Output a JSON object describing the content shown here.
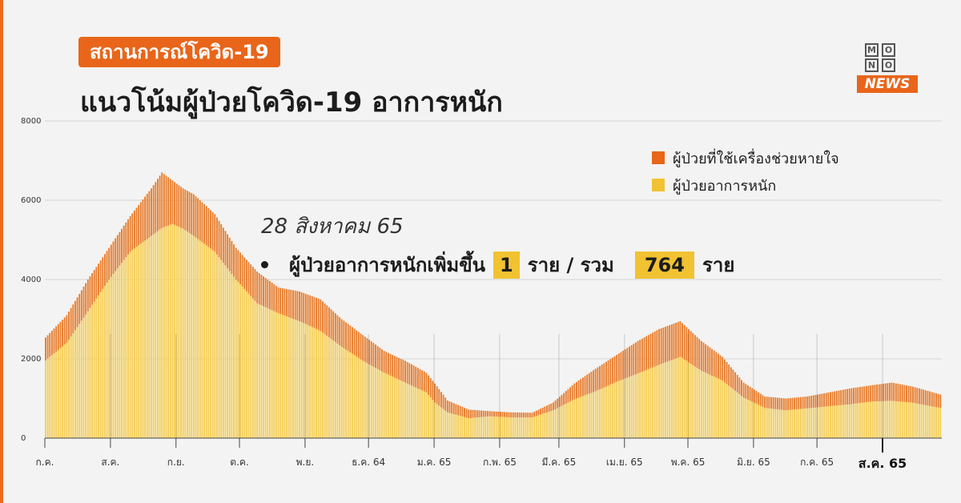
{
  "header": {
    "badge": "สถานการณ์โควิด-19",
    "title": "แนวโน้มผู้ป่วยโควิด-19 อาการหนัก"
  },
  "logo": {
    "top_letters": [
      "M",
      "O",
      "N",
      "O"
    ],
    "bottom_text": "NEWS"
  },
  "annotation": {
    "date": "28 สิงหาคม 65",
    "text_prefix": "ผู้ป่วยอาการหนักเพิ่มขึ้น",
    "new_count": "1",
    "unit1": "ราย / รวม",
    "total": "764",
    "unit2": "ราย"
  },
  "colors": {
    "accent": "#e8651a",
    "ventilator": "#e87e2e",
    "severe": "#f5cf58",
    "grid": "#d6d6d6"
  },
  "chart_data": {
    "type": "bar",
    "stacked": true,
    "ylim": [
      0,
      8000
    ],
    "yticks": [
      0,
      2000,
      4000,
      6000,
      8000
    ],
    "grid": "horizontal",
    "legend_position": "top-right",
    "legend": [
      "ผู้ป่วยที่ใช้เครื่องช่วยหายใจ",
      "ผู้ป่วยอาการหนัก"
    ],
    "x_labels": [
      {
        "label": "ก.ค.",
        "pos": 0
      },
      {
        "label": "ส.ค.",
        "pos": 31
      },
      {
        "label": "ก.ย.",
        "pos": 62
      },
      {
        "label": "ต.ค.",
        "pos": 92
      },
      {
        "label": "พ.ย.",
        "pos": 123
      },
      {
        "label": "ธ.ค. 64",
        "pos": 153
      },
      {
        "label": "ม.ค. 65",
        "pos": 184
      },
      {
        "label": "ก.พ. 65",
        "pos": 215
      },
      {
        "label": "มี.ค. 65",
        "pos": 243
      },
      {
        "label": "เม.ย. 65",
        "pos": 274
      },
      {
        "label": "พ.ค. 65",
        "pos": 304
      },
      {
        "label": "มิ.ย. 65",
        "pos": 335
      },
      {
        "label": "ก.ค. 65",
        "pos": 365
      },
      {
        "label": "ส.ค. 65",
        "pos": 396,
        "highlight": true
      }
    ],
    "series_keyframes": {
      "day": [
        0,
        10,
        20,
        30,
        40,
        50,
        55,
        60,
        65,
        70,
        80,
        90,
        100,
        110,
        120,
        130,
        140,
        150,
        160,
        170,
        180,
        184,
        190,
        200,
        210,
        220,
        230,
        240,
        250,
        260,
        270,
        280,
        290,
        300,
        310,
        320,
        330,
        340,
        350,
        360,
        370,
        380,
        390,
        400,
        410,
        423
      ],
      "severe": [
        1960,
        2400,
        3200,
        4000,
        4700,
        5100,
        5300,
        5400,
        5280,
        5100,
        4700,
        4000,
        3400,
        3150,
        2950,
        2700,
        2300,
        1950,
        1650,
        1400,
        1150,
        900,
        650,
        500,
        550,
        520,
        520,
        700,
        980,
        1180,
        1420,
        1630,
        1850,
        2050,
        1700,
        1450,
        1020,
        760,
        700,
        750,
        800,
        850,
        920,
        940,
        890,
        760
      ],
      "total": [
        2540,
        3100,
        4000,
        4800,
        5600,
        6300,
        6700,
        6500,
        6300,
        6150,
        5650,
        4800,
        4200,
        3800,
        3700,
        3500,
        3000,
        2600,
        2200,
        1950,
        1650,
        1380,
        950,
        720,
        680,
        650,
        640,
        900,
        1380,
        1750,
        2100,
        2450,
        2750,
        2950,
        2450,
        2050,
        1400,
        1050,
        1000,
        1050,
        1150,
        1250,
        1330,
        1400,
        1300,
        1100
      ]
    },
    "num_days": 424
  }
}
